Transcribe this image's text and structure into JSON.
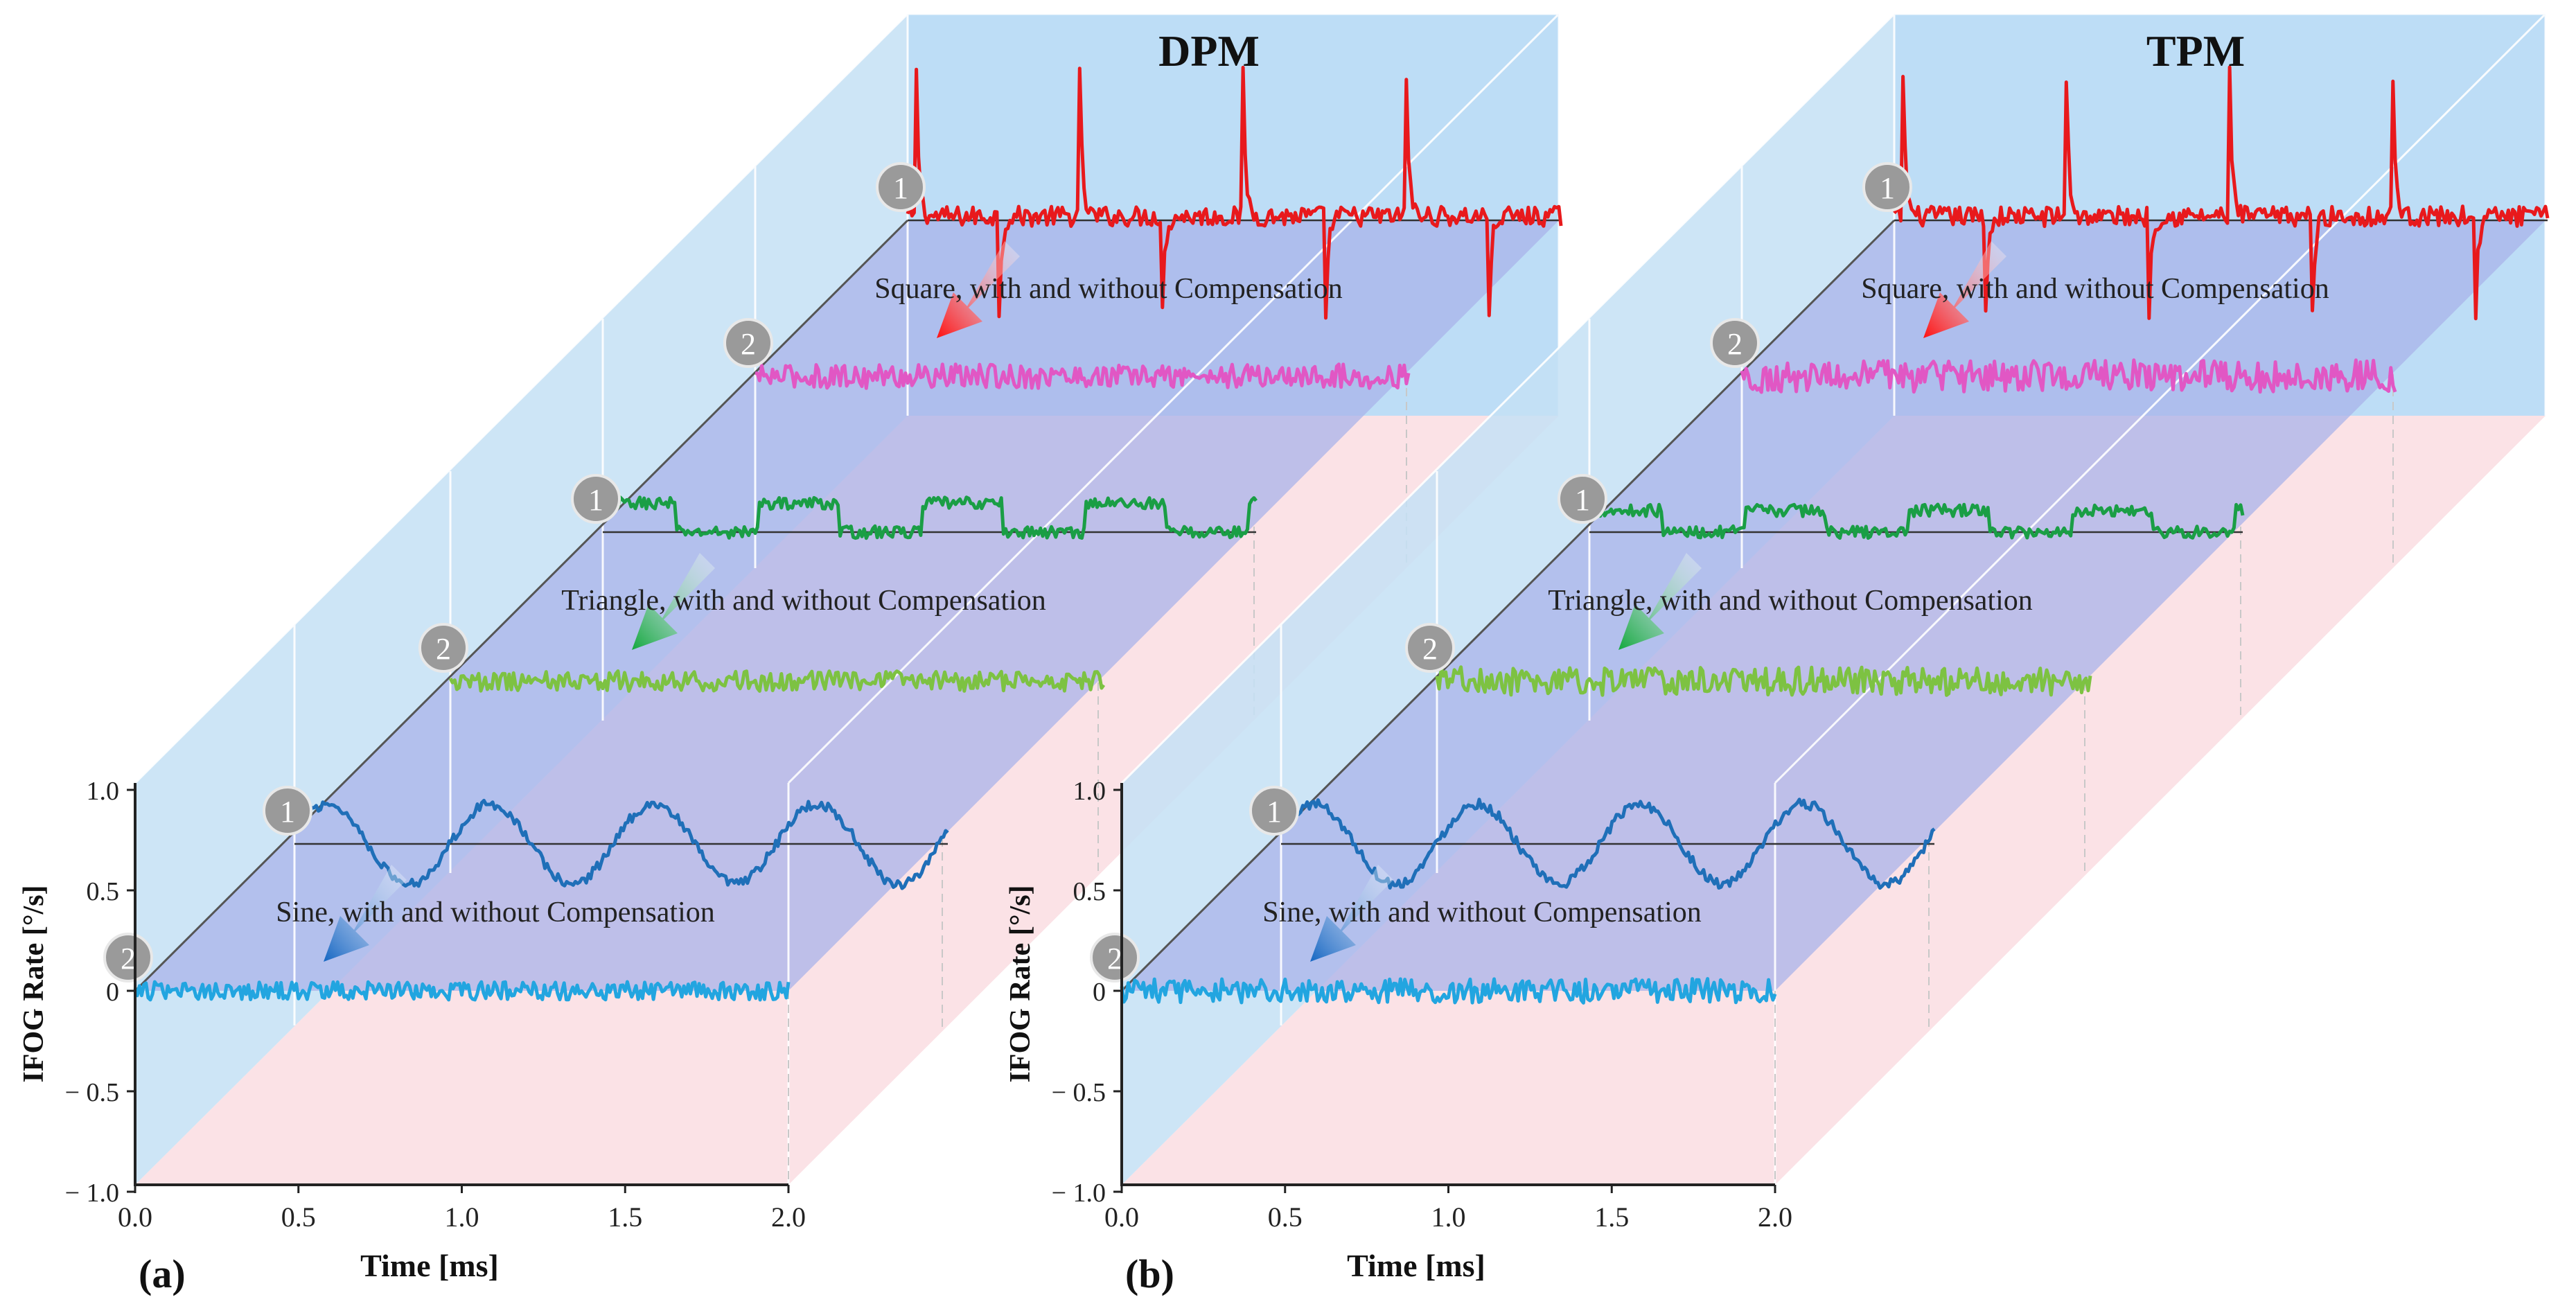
{
  "figure": {
    "panel_labels": [
      "(a)",
      "(b)"
    ]
  },
  "chart_data": [
    {
      "type": "line",
      "panel_label": "(a)",
      "title": "DPM",
      "xlabel": "Time [ms]",
      "ylabel": "IFOG Rate [°/s]",
      "xlim": [
        0,
        2
      ],
      "ylim": [
        -1,
        1
      ],
      "x_ticks": [
        "0.0",
        "0.5",
        "1.0",
        "1.5",
        "2.0"
      ],
      "y_ticks": [
        "1.0",
        "0.5",
        "0",
        "− 0.5",
        "− 1.0"
      ],
      "layers": [
        {
          "name": "Square",
          "caption": "Square, with and without Compensation",
          "series": [
            {
              "marker": "1",
              "name": "Square without compensation",
              "color": "#e8191c",
              "amplitude": 0.55,
              "spike": 0.85,
              "noise": 0.05,
              "periods": 4
            },
            {
              "marker": "2",
              "name": "Square with compensation",
              "color": "#e157c4",
              "amplitude": 0.0,
              "noise": 0.06,
              "periods": 0
            }
          ]
        },
        {
          "name": "Triangle",
          "caption": "Triangle, with and without Compensation",
          "series": [
            {
              "marker": "1",
              "name": "Triangle without compensation",
              "color": "#1a9e45",
              "amplitude": 0.16,
              "noise": 0.03,
              "periods": 4
            },
            {
              "marker": "2",
              "name": "Triangle with compensation",
              "color": "#7dc242",
              "amplitude": 0.0,
              "noise": 0.05,
              "periods": 0
            }
          ]
        },
        {
          "name": "Sine",
          "caption": "Sine, with and without Compensation",
          "series": [
            {
              "marker": "1",
              "name": "Sine without compensation",
              "color": "#1f6fb8",
              "amplitude": 0.2,
              "noise": 0.025,
              "periods": 4
            },
            {
              "marker": "2",
              "name": "Sine with compensation",
              "color": "#22a5e0",
              "amplitude": 0.0,
              "noise": 0.045,
              "periods": 0
            }
          ]
        }
      ]
    },
    {
      "type": "line",
      "panel_label": "(b)",
      "title": "TPM",
      "xlabel": "Time [ms]",
      "ylabel": "IFOG Rate [°/s]",
      "xlim": [
        0,
        2
      ],
      "ylim": [
        -1,
        1
      ],
      "x_ticks": [
        "0.0",
        "0.5",
        "1.0",
        "1.5",
        "2.0"
      ],
      "y_ticks": [
        "1.0",
        "0.5",
        "0",
        "− 0.5",
        "− 1.0"
      ],
      "layers": [
        {
          "name": "Square",
          "caption": "Square, with and without Compensation",
          "series": [
            {
              "marker": "1",
              "name": "Square without compensation",
              "color": "#e8191c",
              "amplitude": 0.55,
              "spike": 0.85,
              "noise": 0.05,
              "periods": 4
            },
            {
              "marker": "2",
              "name": "Square with compensation",
              "color": "#e157c4",
              "amplitude": 0.0,
              "noise": 0.08,
              "periods": 0
            }
          ]
        },
        {
          "name": "Triangle",
          "caption": "Triangle, with and without Compensation",
          "series": [
            {
              "marker": "1",
              "name": "Triangle without compensation",
              "color": "#1a9e45",
              "amplitude": 0.12,
              "noise": 0.03,
              "periods": 4
            },
            {
              "marker": "2",
              "name": "Triangle with compensation",
              "color": "#7dc242",
              "amplitude": 0.0,
              "noise": 0.07,
              "periods": 0
            }
          ]
        },
        {
          "name": "Sine",
          "caption": "Sine, with and without Compensation",
          "series": [
            {
              "marker": "1",
              "name": "Sine without compensation",
              "color": "#1f6fb8",
              "amplitude": 0.2,
              "noise": 0.025,
              "periods": 4
            },
            {
              "marker": "2",
              "name": "Sine with compensation",
              "color": "#22a5e0",
              "amplitude": 0.0,
              "noise": 0.06,
              "periods": 0
            }
          ]
        }
      ]
    }
  ]
}
